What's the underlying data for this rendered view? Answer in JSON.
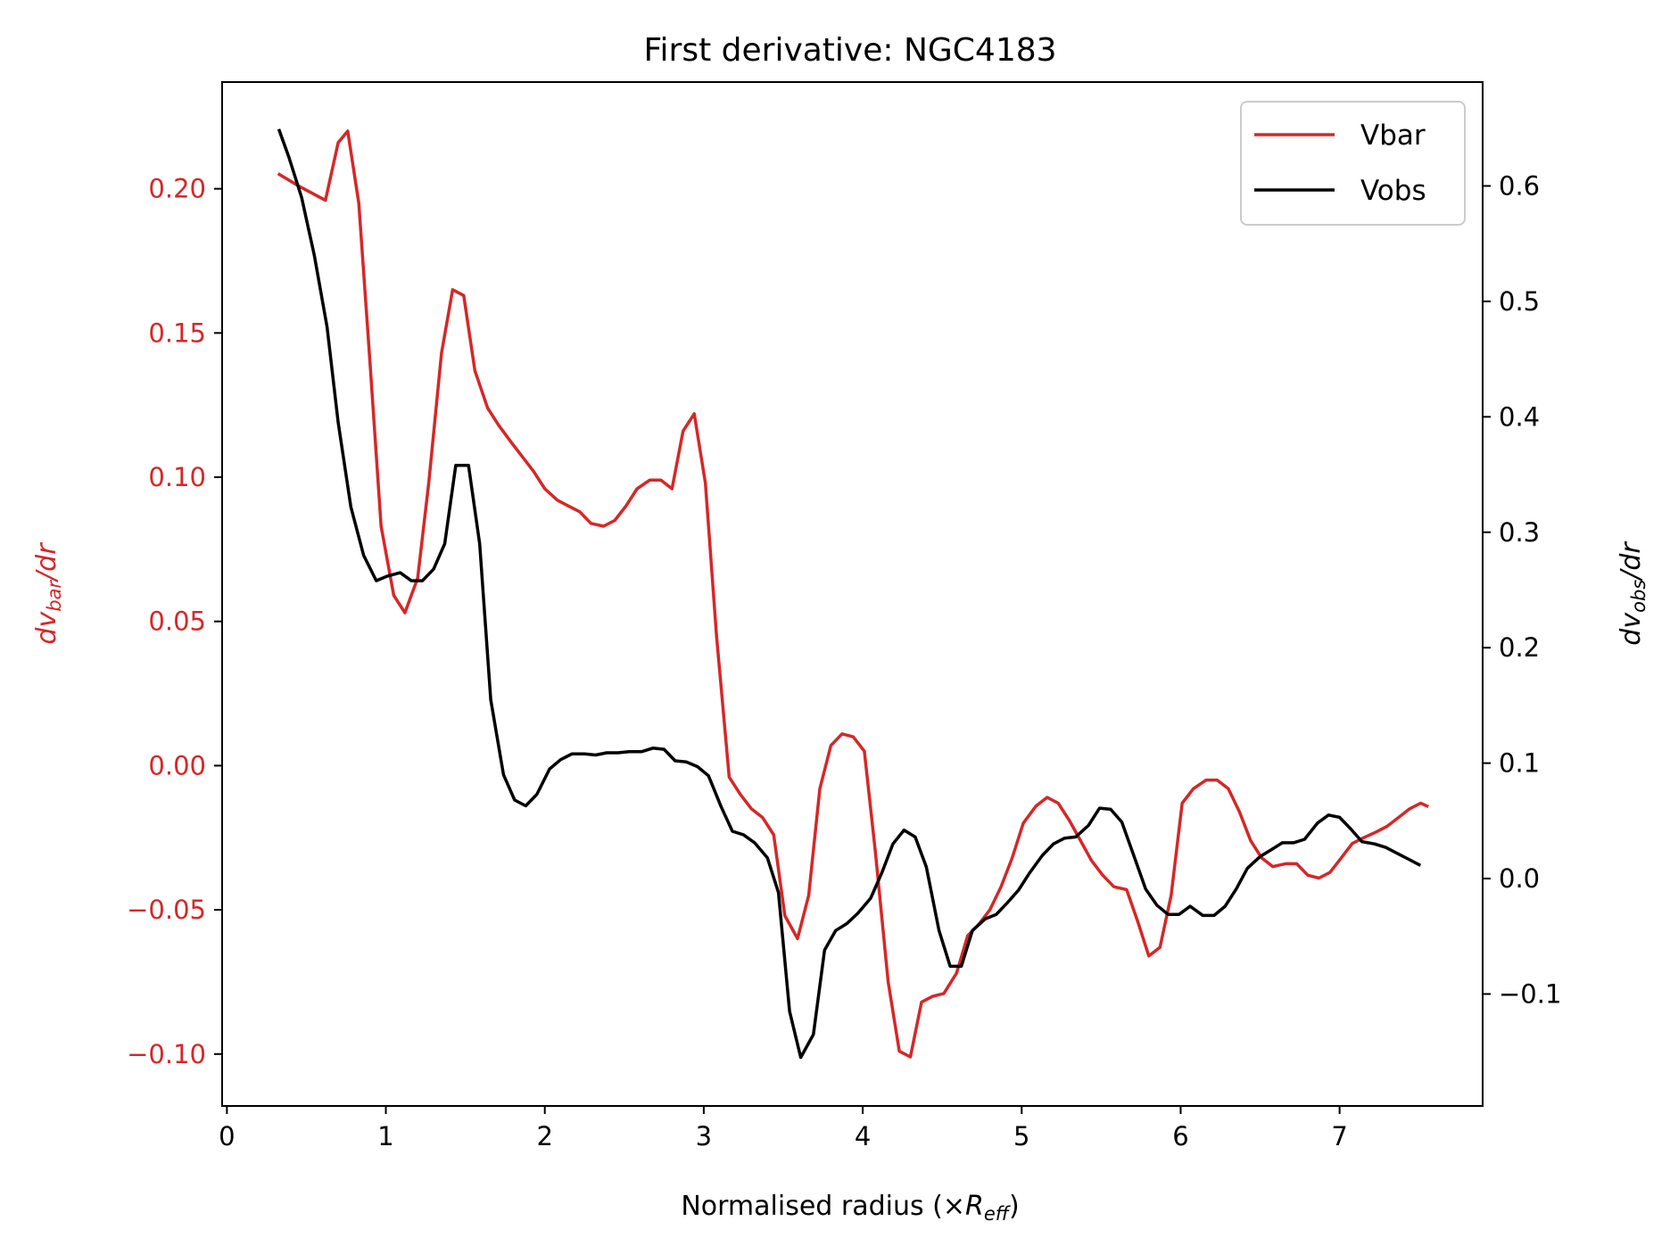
{
  "chart_data": {
    "type": "line",
    "title": "First derivative: NGC4183",
    "xlabel": "Normalised radius (×",
    "xlabel_symbol": "R",
    "xlabel_sub": "eff",
    "xlabel_close": ")",
    "ylabel_left": {
      "main": "dv",
      "sub": "bar",
      "tail": "/dr"
    },
    "ylabel_right": {
      "main": "dv",
      "sub": "obs",
      "tail": "/dr"
    },
    "xlim": [
      -0.03,
      7.9
    ],
    "ylim_left": [
      -0.118,
      0.237
    ],
    "ylim_right": [
      -0.197,
      0.69
    ],
    "x_ticks": [
      {
        "v": 0,
        "label": "0"
      },
      {
        "v": 1,
        "label": "1"
      },
      {
        "v": 2,
        "label": "2"
      },
      {
        "v": 3,
        "label": "3"
      },
      {
        "v": 4,
        "label": "4"
      },
      {
        "v": 5,
        "label": "5"
      },
      {
        "v": 6,
        "label": "6"
      },
      {
        "v": 7,
        "label": "7"
      }
    ],
    "y_ticks_left": [
      {
        "v": 0.2,
        "label": "0.20"
      },
      {
        "v": 0.15,
        "label": "0.15"
      },
      {
        "v": 0.1,
        "label": "0.10"
      },
      {
        "v": 0.05,
        "label": "0.05"
      },
      {
        "v": 0.0,
        "label": "0.00"
      },
      {
        "v": -0.05,
        "label": "−0.05"
      },
      {
        "v": -0.1,
        "label": "−0.10"
      }
    ],
    "y_ticks_right": [
      {
        "v": 0.6,
        "label": "0.6"
      },
      {
        "v": 0.5,
        "label": "0.5"
      },
      {
        "v": 0.4,
        "label": "0.4"
      },
      {
        "v": 0.3,
        "label": "0.3"
      },
      {
        "v": 0.2,
        "label": "0.2"
      },
      {
        "v": 0.1,
        "label": "0.1"
      },
      {
        "v": 0.0,
        "label": "0.0"
      },
      {
        "v": -0.1,
        "label": "−0.1"
      }
    ],
    "grid": false,
    "legend_position": "top-right",
    "series": [
      {
        "name": "Vbar",
        "axis": "left",
        "color": "#d62728",
        "points": [
          [
            0.33,
            0.205
          ],
          [
            0.45,
            0.201
          ],
          [
            0.62,
            0.196
          ],
          [
            0.7,
            0.216
          ],
          [
            0.76,
            0.22
          ],
          [
            0.83,
            0.195
          ],
          [
            0.9,
            0.14
          ],
          [
            0.97,
            0.083
          ],
          [
            1.05,
            0.059
          ],
          [
            1.12,
            0.053
          ],
          [
            1.2,
            0.065
          ],
          [
            1.27,
            0.098
          ],
          [
            1.35,
            0.143
          ],
          [
            1.42,
            0.165
          ],
          [
            1.49,
            0.163
          ],
          [
            1.56,
            0.137
          ],
          [
            1.64,
            0.124
          ],
          [
            1.71,
            0.118
          ],
          [
            1.79,
            0.112
          ],
          [
            1.86,
            0.107
          ],
          [
            1.93,
            0.102
          ],
          [
            2.0,
            0.096
          ],
          [
            2.08,
            0.092
          ],
          [
            2.15,
            0.09
          ],
          [
            2.22,
            0.088
          ],
          [
            2.29,
            0.084
          ],
          [
            2.37,
            0.083
          ],
          [
            2.44,
            0.085
          ],
          [
            2.51,
            0.09
          ],
          [
            2.58,
            0.096
          ],
          [
            2.66,
            0.099
          ],
          [
            2.73,
            0.099
          ],
          [
            2.8,
            0.096
          ],
          [
            2.87,
            0.116
          ],
          [
            2.94,
            0.122
          ],
          [
            3.01,
            0.098
          ],
          [
            3.08,
            0.045
          ],
          [
            3.16,
            -0.004
          ],
          [
            3.23,
            -0.01
          ],
          [
            3.3,
            -0.015
          ],
          [
            3.37,
            -0.018
          ],
          [
            3.44,
            -0.024
          ],
          [
            3.51,
            -0.052
          ],
          [
            3.59,
            -0.06
          ],
          [
            3.66,
            -0.045
          ],
          [
            3.73,
            -0.008
          ],
          [
            3.8,
            0.007
          ],
          [
            3.87,
            0.011
          ],
          [
            3.94,
            0.01
          ],
          [
            4.01,
            0.005
          ],
          [
            4.08,
            -0.03
          ],
          [
            4.16,
            -0.075
          ],
          [
            4.23,
            -0.099
          ],
          [
            4.3,
            -0.101
          ],
          [
            4.37,
            -0.082
          ],
          [
            4.44,
            -0.08
          ],
          [
            4.51,
            -0.079
          ],
          [
            4.59,
            -0.072
          ],
          [
            4.66,
            -0.059
          ],
          [
            4.73,
            -0.055
          ],
          [
            4.8,
            -0.05
          ],
          [
            4.87,
            -0.042
          ],
          [
            4.94,
            -0.032
          ],
          [
            5.01,
            -0.02
          ],
          [
            5.09,
            -0.014
          ],
          [
            5.16,
            -0.011
          ],
          [
            5.23,
            -0.013
          ],
          [
            5.3,
            -0.019
          ],
          [
            5.37,
            -0.026
          ],
          [
            5.44,
            -0.033
          ],
          [
            5.51,
            -0.038
          ],
          [
            5.58,
            -0.042
          ],
          [
            5.66,
            -0.043
          ],
          [
            5.73,
            -0.054
          ],
          [
            5.8,
            -0.066
          ],
          [
            5.87,
            -0.063
          ],
          [
            5.94,
            -0.045
          ],
          [
            6.01,
            -0.013
          ],
          [
            6.08,
            -0.008
          ],
          [
            6.16,
            -0.005
          ],
          [
            6.23,
            -0.005
          ],
          [
            6.3,
            -0.008
          ],
          [
            6.37,
            -0.016
          ],
          [
            6.44,
            -0.026
          ],
          [
            6.51,
            -0.032
          ],
          [
            6.58,
            -0.035
          ],
          [
            6.66,
            -0.034
          ],
          [
            6.73,
            -0.034
          ],
          [
            6.8,
            -0.038
          ],
          [
            6.87,
            -0.039
          ],
          [
            6.94,
            -0.037
          ],
          [
            7.01,
            -0.032
          ],
          [
            7.08,
            -0.027
          ],
          [
            7.15,
            -0.025
          ],
          [
            7.23,
            -0.023
          ],
          [
            7.3,
            -0.021
          ],
          [
            7.37,
            -0.018
          ],
          [
            7.44,
            -0.015
          ],
          [
            7.51,
            -0.013
          ],
          [
            7.55,
            -0.014
          ]
        ]
      },
      {
        "name": "Vobs",
        "axis": "right",
        "color": "#000000",
        "points": [
          [
            0.33,
            0.648
          ],
          [
            0.39,
            0.625
          ],
          [
            0.47,
            0.59
          ],
          [
            0.55,
            0.54
          ],
          [
            0.63,
            0.478
          ],
          [
            0.7,
            0.395
          ],
          [
            0.78,
            0.322
          ],
          [
            0.86,
            0.28
          ],
          [
            0.94,
            0.258
          ],
          [
            1.01,
            0.262
          ],
          [
            1.09,
            0.265
          ],
          [
            1.16,
            0.258
          ],
          [
            1.23,
            0.258
          ],
          [
            1.3,
            0.268
          ],
          [
            1.37,
            0.29
          ],
          [
            1.44,
            0.358
          ],
          [
            1.52,
            0.358
          ],
          [
            1.59,
            0.29
          ],
          [
            1.66,
            0.155
          ],
          [
            1.74,
            0.09
          ],
          [
            1.81,
            0.068
          ],
          [
            1.88,
            0.063
          ],
          [
            1.95,
            0.073
          ],
          [
            2.03,
            0.095
          ],
          [
            2.1,
            0.103
          ],
          [
            2.17,
            0.108
          ],
          [
            2.25,
            0.108
          ],
          [
            2.32,
            0.107
          ],
          [
            2.39,
            0.109
          ],
          [
            2.46,
            0.109
          ],
          [
            2.53,
            0.11
          ],
          [
            2.61,
            0.11
          ],
          [
            2.68,
            0.113
          ],
          [
            2.75,
            0.112
          ],
          [
            2.82,
            0.102
          ],
          [
            2.89,
            0.101
          ],
          [
            2.96,
            0.097
          ],
          [
            3.03,
            0.089
          ],
          [
            3.11,
            0.062
          ],
          [
            3.18,
            0.041
          ],
          [
            3.25,
            0.038
          ],
          [
            3.32,
            0.031
          ],
          [
            3.4,
            0.018
          ],
          [
            3.47,
            -0.012
          ],
          [
            3.54,
            -0.115
          ],
          [
            3.61,
            -0.155
          ],
          [
            3.69,
            -0.135
          ],
          [
            3.76,
            -0.062
          ],
          [
            3.83,
            -0.045
          ],
          [
            3.9,
            -0.039
          ],
          [
            3.97,
            -0.03
          ],
          [
            4.05,
            -0.017
          ],
          [
            4.12,
            0.005
          ],
          [
            4.19,
            0.03
          ],
          [
            4.26,
            0.042
          ],
          [
            4.33,
            0.036
          ],
          [
            4.4,
            0.01
          ],
          [
            4.48,
            -0.045
          ],
          [
            4.55,
            -0.076
          ],
          [
            4.62,
            -0.076
          ],
          [
            4.69,
            -0.045
          ],
          [
            4.77,
            -0.035
          ],
          [
            4.84,
            -0.031
          ],
          [
            4.91,
            -0.021
          ],
          [
            4.98,
            -0.01
          ],
          [
            5.05,
            0.005
          ],
          [
            5.13,
            0.02
          ],
          [
            5.2,
            0.03
          ],
          [
            5.27,
            0.035
          ],
          [
            5.34,
            0.036
          ],
          [
            5.42,
            0.046
          ],
          [
            5.49,
            0.061
          ],
          [
            5.56,
            0.06
          ],
          [
            5.63,
            0.049
          ],
          [
            5.7,
            0.022
          ],
          [
            5.78,
            -0.009
          ],
          [
            5.85,
            -0.023
          ],
          [
            5.92,
            -0.031
          ],
          [
            5.99,
            -0.031
          ],
          [
            6.06,
            -0.024
          ],
          [
            6.14,
            -0.032
          ],
          [
            6.21,
            -0.032
          ],
          [
            6.28,
            -0.024
          ],
          [
            6.35,
            -0.009
          ],
          [
            6.42,
            0.009
          ],
          [
            6.5,
            0.019
          ],
          [
            6.57,
            0.025
          ],
          [
            6.64,
            0.031
          ],
          [
            6.71,
            0.031
          ],
          [
            6.78,
            0.034
          ],
          [
            6.86,
            0.048
          ],
          [
            6.93,
            0.055
          ],
          [
            7.0,
            0.053
          ],
          [
            7.07,
            0.043
          ],
          [
            7.14,
            0.032
          ],
          [
            7.22,
            0.03
          ],
          [
            7.29,
            0.027
          ],
          [
            7.36,
            0.022
          ],
          [
            7.43,
            0.017
          ],
          [
            7.5,
            0.012
          ]
        ]
      }
    ]
  }
}
